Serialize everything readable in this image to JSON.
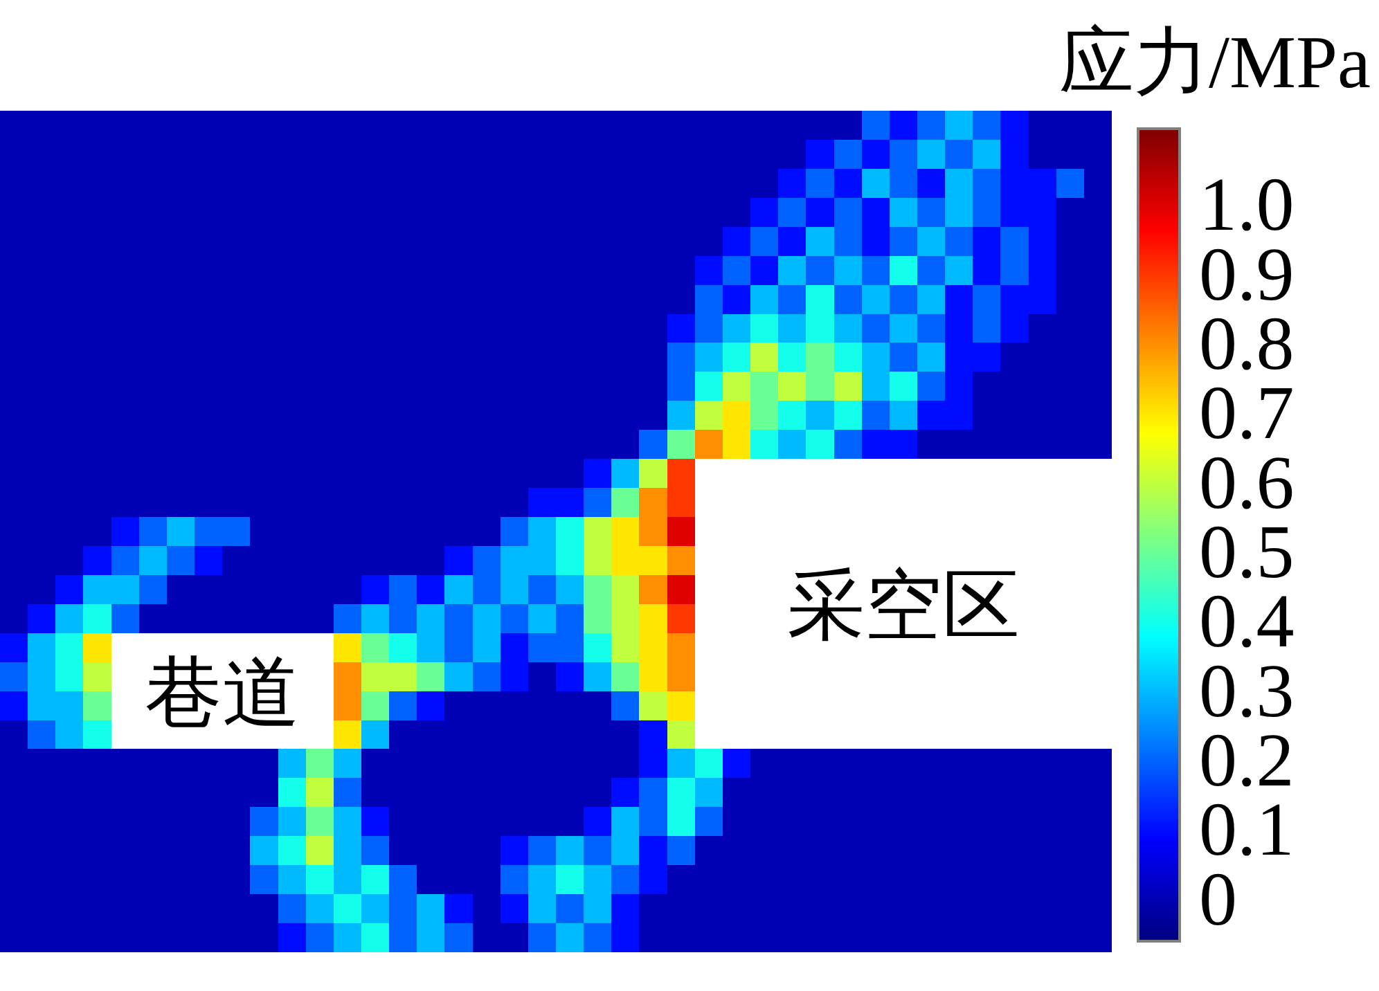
{
  "chart_data": {
    "type": "heatmap",
    "categories": [
      null,
      null,
      null,
      null,
      null,
      null,
      null,
      null,
      null,
      null,
      null,
      null,
      null,
      null,
      null,
      null,
      null,
      null,
      null,
      null,
      null,
      null,
      null,
      null,
      null,
      null,
      null,
      null,
      null,
      null,
      null,
      null,
      null,
      null,
      null,
      null,
      null,
      null,
      null,
      null
    ],
    "y_categories": [
      null,
      null,
      null,
      null,
      null,
      null,
      null,
      null,
      null,
      null,
      null,
      null,
      null,
      null,
      null,
      null,
      null,
      null,
      null,
      null,
      null,
      null,
      null,
      null,
      null,
      null,
      null,
      null,
      null
    ],
    "cells": [
      [
        0,
        0,
        0,
        0,
        0,
        0,
        0,
        0,
        0,
        0,
        0,
        0,
        0,
        0,
        0,
        0,
        0,
        0,
        0,
        0,
        0,
        0,
        0,
        0,
        0,
        0,
        0,
        0,
        0,
        0,
        0,
        0.2,
        0.1,
        0.2,
        0.3,
        0.2,
        0.1,
        0,
        0,
        0
      ],
      [
        0,
        0,
        0,
        0,
        0,
        0,
        0,
        0,
        0,
        0,
        0,
        0,
        0,
        0,
        0,
        0,
        0,
        0,
        0,
        0,
        0,
        0,
        0,
        0,
        0,
        0,
        0,
        0,
        0,
        0.1,
        0.2,
        0.1,
        0.2,
        0.3,
        0.2,
        0.3,
        0.1,
        0,
        0,
        0
      ],
      [
        0,
        0,
        0,
        0,
        0,
        0,
        0,
        0,
        0,
        0,
        0,
        0,
        0,
        0,
        0,
        0,
        0,
        0,
        0,
        0,
        0,
        0,
        0,
        0,
        0,
        0,
        0,
        0,
        0.1,
        0.2,
        0.1,
        0.3,
        0.2,
        0.1,
        0.3,
        0.2,
        0.1,
        0.1,
        0.2,
        0
      ],
      [
        0,
        0,
        0,
        0,
        0,
        0,
        0,
        0,
        0,
        0,
        0,
        0,
        0,
        0,
        0,
        0,
        0,
        0,
        0,
        0,
        0,
        0,
        0,
        0,
        0,
        0,
        0,
        0.1,
        0.2,
        0.1,
        0.2,
        0.1,
        0.3,
        0.2,
        0.3,
        0.2,
        0.1,
        0.1,
        0,
        0
      ],
      [
        0,
        0,
        0,
        0,
        0,
        0,
        0,
        0,
        0,
        0,
        0,
        0,
        0,
        0,
        0,
        0,
        0,
        0,
        0,
        0,
        0,
        0,
        0,
        0,
        0,
        0,
        0.1,
        0.2,
        0.1,
        0.3,
        0.2,
        0.1,
        0.2,
        0.3,
        0.2,
        0.1,
        0.2,
        0.1,
        0,
        0
      ],
      [
        0,
        0,
        0,
        0,
        0,
        0,
        0,
        0,
        0,
        0,
        0,
        0,
        0,
        0,
        0,
        0,
        0,
        0,
        0,
        0,
        0,
        0,
        0,
        0,
        0,
        0.1,
        0.2,
        0.1,
        0.3,
        0.2,
        0.3,
        0.2,
        0.4,
        0.2,
        0.3,
        0.1,
        0.2,
        0.1,
        0,
        0
      ],
      [
        0,
        0,
        0,
        0,
        0,
        0,
        0,
        0,
        0,
        0,
        0,
        0,
        0,
        0,
        0,
        0,
        0,
        0,
        0,
        0,
        0,
        0,
        0,
        0,
        0,
        0.2,
        0.1,
        0.3,
        0.2,
        0.4,
        0.2,
        0.3,
        0.2,
        0.3,
        0.1,
        0.2,
        0.1,
        0.1,
        0,
        0
      ],
      [
        0,
        0,
        0,
        0,
        0,
        0,
        0,
        0,
        0,
        0,
        0,
        0,
        0,
        0,
        0,
        0,
        0,
        0,
        0,
        0,
        0,
        0,
        0,
        0,
        0.1,
        0.2,
        0.3,
        0.4,
        0.3,
        0.4,
        0.3,
        0.2,
        0.3,
        0.2,
        0.1,
        0.2,
        0.1,
        0,
        0,
        0
      ],
      [
        0,
        0,
        0,
        0,
        0,
        0,
        0,
        0,
        0,
        0,
        0,
        0,
        0,
        0,
        0,
        0,
        0,
        0,
        0,
        0,
        0,
        0,
        0,
        0,
        0.2,
        0.3,
        0.4,
        0.6,
        0.4,
        0.5,
        0.4,
        0.3,
        0.2,
        0.3,
        0.1,
        0.1,
        0,
        0,
        0,
        0
      ],
      [
        0,
        0,
        0,
        0,
        0,
        0,
        0,
        0,
        0,
        0,
        0,
        0,
        0,
        0,
        0,
        0,
        0,
        0,
        0,
        0,
        0,
        0,
        0,
        0,
        0.2,
        0.4,
        0.6,
        0.5,
        0.6,
        0.5,
        0.6,
        0.3,
        0.4,
        0.2,
        0.1,
        0,
        0,
        0,
        0,
        0
      ],
      [
        0,
        0,
        0,
        0,
        0,
        0,
        0,
        0,
        0,
        0,
        0,
        0,
        0,
        0,
        0,
        0,
        0,
        0,
        0,
        0,
        0,
        0,
        0,
        0,
        0.3,
        0.6,
        0.7,
        0.5,
        0.4,
        0.3,
        0.4,
        0.2,
        0.3,
        0.1,
        0.1,
        0,
        0,
        0,
        0,
        0
      ],
      [
        0,
        0,
        0,
        0,
        0,
        0,
        0,
        0,
        0,
        0,
        0,
        0,
        0,
        0,
        0,
        0,
        0,
        0,
        0,
        0,
        0,
        0,
        0,
        0.2,
        0.5,
        0.8,
        0.7,
        0.4,
        0.3,
        0.4,
        0.2,
        0.1,
        0.1,
        0,
        0,
        0,
        0,
        0,
        0,
        0
      ],
      [
        0,
        0,
        0,
        0,
        0,
        0,
        0,
        0,
        0,
        0,
        0,
        0,
        0,
        0,
        0,
        0,
        0,
        0,
        0,
        0,
        0,
        0.1,
        0.3,
        0.6,
        0.9,
        null,
        null,
        null,
        null,
        null,
        null,
        null,
        null,
        null,
        null,
        null,
        null,
        null,
        null,
        null
      ],
      [
        0,
        0,
        0,
        0,
        0,
        0,
        0,
        0,
        0,
        0,
        0,
        0,
        0,
        0,
        0,
        0,
        0,
        0,
        0,
        0.1,
        0.1,
        0.2,
        0.5,
        0.8,
        0.9,
        null,
        null,
        null,
        null,
        null,
        null,
        null,
        null,
        null,
        null,
        null,
        null,
        null,
        null,
        null
      ],
      [
        0,
        0,
        0,
        0,
        0.1,
        0.2,
        0.3,
        0.2,
        0.2,
        0,
        0,
        0,
        0,
        0,
        0,
        0,
        0,
        0,
        0.2,
        0.3,
        0.4,
        0.6,
        0.7,
        0.8,
        1.0,
        null,
        null,
        null,
        null,
        null,
        null,
        null,
        null,
        null,
        null,
        null,
        null,
        null,
        null,
        null
      ],
      [
        0,
        0,
        0,
        0.1,
        0.2,
        0.3,
        0.2,
        0.1,
        0,
        0,
        0,
        0,
        0,
        0,
        0,
        0,
        0.1,
        0.2,
        0.3,
        0.3,
        0.4,
        0.6,
        0.7,
        0.7,
        0.8,
        null,
        null,
        null,
        null,
        null,
        null,
        null,
        null,
        null,
        null,
        null,
        null,
        null,
        null,
        null
      ],
      [
        0,
        0,
        0.1,
        0.3,
        0.3,
        0.2,
        0,
        0,
        0,
        0,
        0,
        0,
        0,
        0.1,
        0.2,
        0.1,
        0.3,
        0.2,
        0.3,
        0.2,
        0.3,
        0.5,
        0.6,
        0.8,
        1.0,
        null,
        null,
        null,
        null,
        null,
        null,
        null,
        null,
        null,
        null,
        null,
        null,
        null,
        null,
        null
      ],
      [
        0,
        0.1,
        0.3,
        0.4,
        0.2,
        0,
        0,
        0,
        0,
        0,
        0,
        0,
        0.2,
        0.3,
        0.2,
        0.3,
        0.2,
        0.3,
        0.2,
        0.3,
        0.2,
        0.5,
        0.6,
        0.7,
        0.9,
        null,
        null,
        null,
        null,
        null,
        null,
        null,
        null,
        null,
        null,
        null,
        null,
        null,
        null,
        null
      ],
      [
        0.1,
        0.3,
        0.4,
        0.7,
        null,
        null,
        null,
        null,
        null,
        null,
        null,
        null,
        0.7,
        0.5,
        0.4,
        0.3,
        0.2,
        0.3,
        0.1,
        0.2,
        0.2,
        0.4,
        0.6,
        0.7,
        0.8,
        null,
        null,
        null,
        null,
        null,
        null,
        null,
        null,
        null,
        null,
        null,
        null,
        null,
        null,
        null
      ],
      [
        0.2,
        0.3,
        0.4,
        0.6,
        null,
        null,
        null,
        null,
        null,
        null,
        null,
        null,
        0.8,
        0.6,
        0.6,
        0.5,
        0.3,
        0.2,
        0.1,
        0,
        0.1,
        0.3,
        0.5,
        0.7,
        0.8,
        null,
        null,
        null,
        null,
        null,
        null,
        null,
        null,
        null,
        null,
        null,
        null,
        null,
        null,
        null
      ],
      [
        0.1,
        0.3,
        0.3,
        0.5,
        null,
        null,
        null,
        null,
        null,
        null,
        null,
        null,
        0.8,
        0.5,
        0.2,
        0.1,
        0,
        0,
        0,
        0,
        0,
        0,
        0.2,
        0.6,
        0.7,
        null,
        null,
        null,
        null,
        null,
        null,
        null,
        null,
        null,
        null,
        null,
        null,
        null,
        null,
        null
      ],
      [
        0,
        0.2,
        0.3,
        0.4,
        null,
        null,
        null,
        null,
        null,
        null,
        null,
        null,
        0.7,
        0.3,
        0,
        0,
        0,
        0,
        0,
        0,
        0,
        0,
        0,
        0.1,
        0.6,
        null,
        null,
        null,
        null,
        null,
        null,
        null,
        null,
        null,
        null,
        null,
        null,
        null,
        null,
        null
      ],
      [
        0,
        0,
        0,
        0,
        0,
        0,
        0,
        0,
        0,
        0,
        0.3,
        0.5,
        0.3,
        0,
        0,
        0,
        0,
        0,
        0,
        0,
        0,
        0,
        0,
        0.1,
        0.3,
        0.4,
        0.1,
        0,
        0,
        0,
        0,
        0,
        0,
        0,
        0,
        0,
        0,
        0,
        0,
        0
      ],
      [
        0,
        0,
        0,
        0,
        0,
        0,
        0,
        0,
        0,
        0,
        0.4,
        0.6,
        0.2,
        0,
        0,
        0,
        0,
        0,
        0,
        0,
        0,
        0,
        0.1,
        0.2,
        0.4,
        0.3,
        0,
        0,
        0,
        0,
        0,
        0,
        0,
        0,
        0,
        0,
        0,
        0,
        0,
        0
      ],
      [
        0,
        0,
        0,
        0,
        0,
        0,
        0,
        0,
        0,
        0.2,
        0.3,
        0.5,
        0.3,
        0.1,
        0,
        0,
        0,
        0,
        0,
        0,
        0,
        0.1,
        0.3,
        0.2,
        0.4,
        0.2,
        0,
        0,
        0,
        0,
        0,
        0,
        0,
        0,
        0,
        0,
        0,
        0,
        0,
        0
      ],
      [
        0,
        0,
        0,
        0,
        0,
        0,
        0,
        0,
        0,
        0.3,
        0.4,
        0.6,
        0.3,
        0.2,
        0,
        0,
        0,
        0,
        0.1,
        0.2,
        0.3,
        0.2,
        0.3,
        0.1,
        0.2,
        0,
        0,
        0,
        0,
        0,
        0,
        0,
        0,
        0,
        0,
        0,
        0,
        0,
        0,
        0
      ],
      [
        0,
        0,
        0,
        0,
        0,
        0,
        0,
        0,
        0,
        0.2,
        0.3,
        0.4,
        0.3,
        0.4,
        0.2,
        0,
        0,
        0,
        0.2,
        0.3,
        0.4,
        0.3,
        0.2,
        0.1,
        0,
        0,
        0,
        0,
        0,
        0,
        0,
        0,
        0,
        0,
        0,
        0,
        0,
        0,
        0,
        0
      ],
      [
        0,
        0,
        0,
        0,
        0,
        0,
        0,
        0,
        0,
        0,
        0.2,
        0.3,
        0.4,
        0.3,
        0.2,
        0.3,
        0.1,
        0,
        0.1,
        0.3,
        0.2,
        0.3,
        0.1,
        0,
        0,
        0,
        0,
        0,
        0,
        0,
        0,
        0,
        0,
        0,
        0,
        0,
        0,
        0,
        0,
        0
      ],
      [
        0,
        0,
        0,
        0,
        0,
        0,
        0,
        0,
        0,
        0,
        0.1,
        0.2,
        0.3,
        0.4,
        0.2,
        0.3,
        0.2,
        0,
        0,
        0.2,
        0.3,
        0.2,
        0.1,
        0,
        0,
        0,
        0,
        0,
        0,
        0,
        0,
        0,
        0,
        0,
        0,
        0,
        0,
        0,
        0,
        0
      ]
    ],
    "clim": [
      -0.06,
      1.11
    ],
    "cticks": [
      0,
      0.1,
      0.2,
      0.3,
      0.4,
      0.5,
      0.6,
      0.7,
      0.8,
      0.9,
      {
        "value": 1,
        "label": "1.0"
      }
    ],
    "clabel": "应力/MPa",
    "annotations": [
      "巷道",
      "采空区"
    ]
  }
}
